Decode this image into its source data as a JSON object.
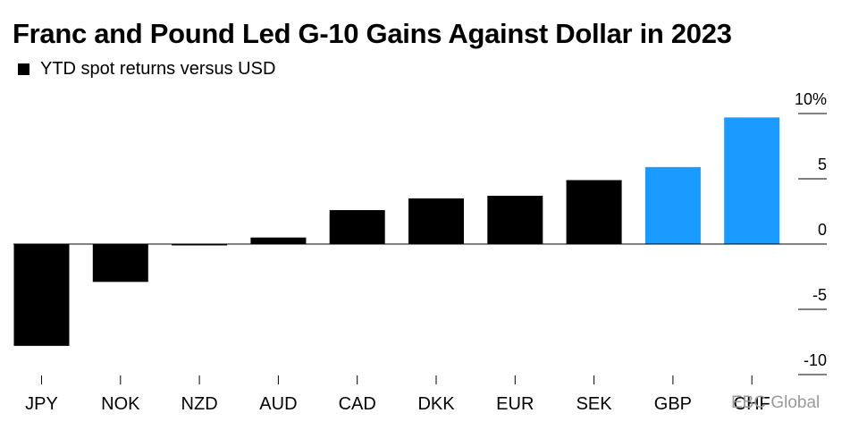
{
  "chart_data": {
    "type": "bar",
    "title": "Franc and Pound Led G-10 Gains Against Dollar in 2023",
    "legend": {
      "label": "YTD spot returns versus USD",
      "color": "#000000",
      "placement": "top-left"
    },
    "categories": [
      "JPY",
      "NOK",
      "NZD",
      "AUD",
      "CAD",
      "DKK",
      "EUR",
      "SEK",
      "GBP",
      "CHF"
    ],
    "values": [
      -7.8,
      -2.9,
      -0.1,
      0.5,
      2.6,
      3.5,
      3.7,
      4.9,
      5.9,
      9.7
    ],
    "colors": [
      "#000000",
      "#000000",
      "#000000",
      "#000000",
      "#000000",
      "#000000",
      "#000000",
      "#000000",
      "#1a9bff",
      "#1a9bff"
    ],
    "ylim": [
      -10,
      10
    ],
    "yticks": [
      10,
      5,
      0,
      -5,
      -10
    ],
    "ytick_labels": [
      "10%",
      "5",
      "0",
      "-5",
      "-10"
    ],
    "y_axis_position": "right",
    "grid": false,
    "zero_line": true
  },
  "watermark": "EBC Global"
}
